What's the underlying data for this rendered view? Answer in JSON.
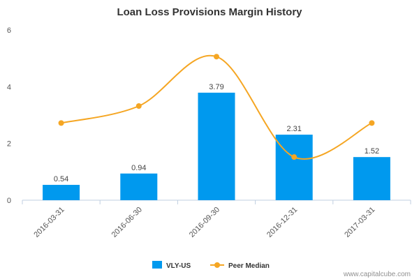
{
  "chart_data": {
    "type": "bar",
    "title": "Loan Loss Provisions Margin History",
    "xlabel": "",
    "ylabel": "",
    "categories": [
      "2016-03-31",
      "2016-06-30",
      "2016-09-30",
      "2016-12-31",
      "2017-03-31"
    ],
    "ylim": [
      0,
      6
    ],
    "yticks": [
      "0",
      "2",
      "4",
      "6"
    ],
    "grid": false,
    "legend_position": "bottom-center",
    "series": [
      {
        "name": "VLY-US",
        "type": "bar",
        "color": "#0099ee",
        "values": [
          0.54,
          0.94,
          3.79,
          2.31,
          1.52
        ],
        "labels": [
          "0.54",
          "0.94",
          "3.79",
          "2.31",
          "1.52"
        ]
      },
      {
        "name": "Peer Median",
        "type": "line",
        "smooth": true,
        "color": "#f5a623",
        "values": [
          2.72,
          3.32,
          5.06,
          1.52,
          2.72
        ]
      }
    ],
    "credit": "www.capitalcube.com"
  }
}
